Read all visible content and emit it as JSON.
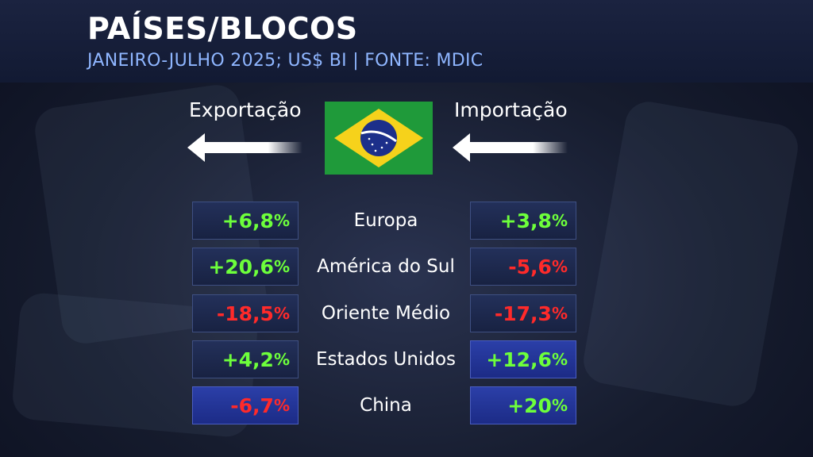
{
  "header": {
    "title": "PAÍSES/BLOCOS",
    "subtitle": "JANEIRO-JULHO 2025; US$ BI | FONTE: MDIC"
  },
  "labels": {
    "export": "Exportação",
    "import": "Importação"
  },
  "icons": {
    "flag": "brazil-flag-icon",
    "export_arrow": "arrow-left-icon",
    "import_arrow": "arrow-left-icon"
  },
  "colors": {
    "positive": "#6dff3b",
    "negative": "#ff2a2a",
    "subtitle": "#8fb6ff"
  },
  "rows": [
    {
      "region": "Europa",
      "export": "+6,8",
      "import": "+3,8"
    },
    {
      "region": "América do Sul",
      "export": "+20,6",
      "import": "-5,6"
    },
    {
      "region": "Oriente Médio",
      "export": "-18,5",
      "import": "-17,3"
    },
    {
      "region": "Estados Unidos",
      "export": "+4,2",
      "import": "+12,6"
    },
    {
      "region": "China",
      "export": "-6,7",
      "import": "+20"
    }
  ],
  "percent_symbol": "%"
}
